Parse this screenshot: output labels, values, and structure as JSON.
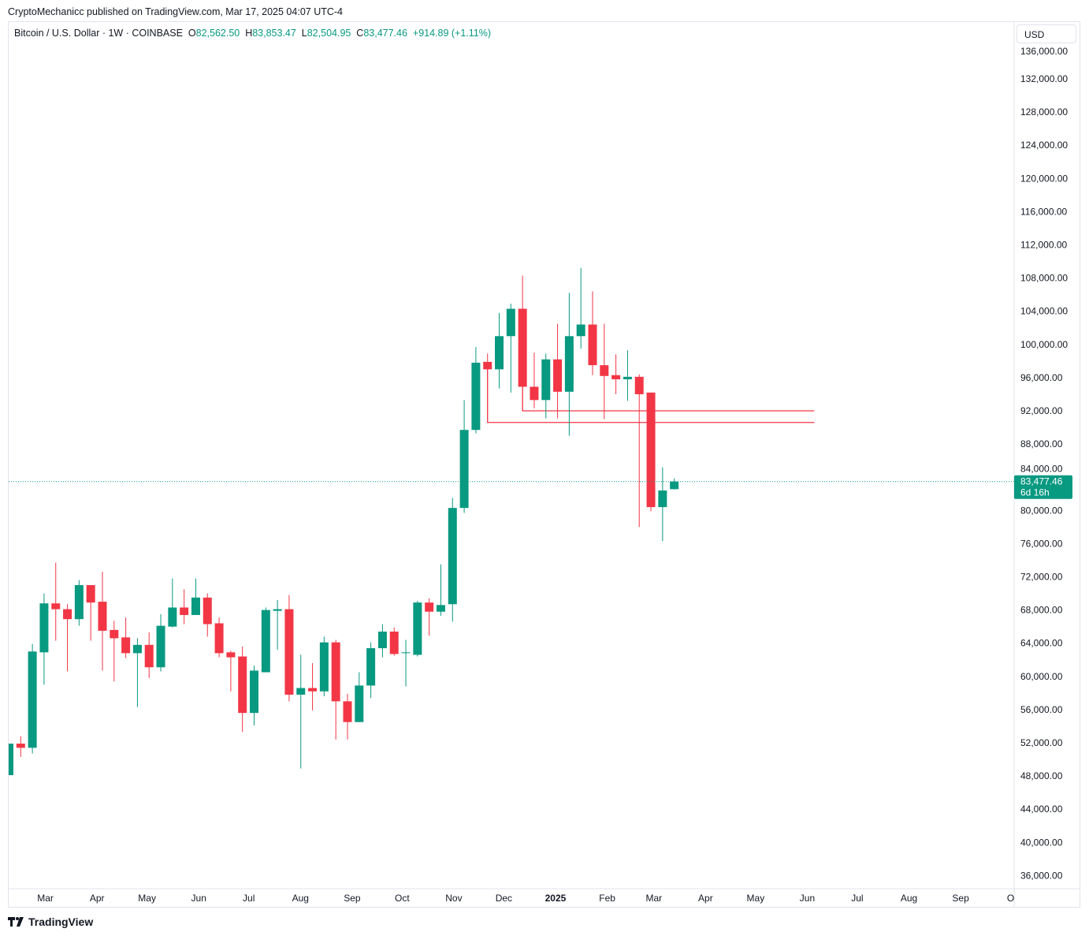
{
  "header": {
    "published": "CryptoMechanicc published on TradingView.com, Mar 17, 2025 04:07 UTC-4",
    "symbol": "Bitcoin / U.S. Dollar · 1W · COINBASE",
    "o_label": "O",
    "o_value": "82,562.50",
    "h_label": "H",
    "h_value": "83,853.47",
    "l_label": "L",
    "l_value": "82,504.95",
    "c_label": "C",
    "c_value": "83,477.46",
    "change": "+914.89 (+1.11%)",
    "currency": "USD"
  },
  "footer": {
    "brand": "TradingView",
    "logo_icon": "tradingview-logo-icon"
  },
  "colors": {
    "up": "#089981",
    "down": "#f23645",
    "level_line": "#f23645"
  },
  "chart_data": {
    "type": "candlestick",
    "interval": "1W",
    "ylim": [
      34000,
      137000
    ],
    "y_ticks": [
      136000,
      132000,
      128000,
      124000,
      120000,
      116000,
      112000,
      108000,
      104000,
      100000,
      96000,
      92000,
      88000,
      84000,
      80000,
      76000,
      72000,
      68000,
      64000,
      60000,
      56000,
      52000,
      48000,
      44000,
      40000,
      36000
    ],
    "y_tick_labels": [
      "136,000.00",
      "132,000.00",
      "128,000.00",
      "124,000.00",
      "120,000.00",
      "116,000.00",
      "112,000.00",
      "108,000.00",
      "104,000.00",
      "100,000.00",
      "96,000.00",
      "92,000.00",
      "88,000.00",
      "84,000.00",
      "80,000.00",
      "76,000.00",
      "72,000.00",
      "68,000.00",
      "64,000.00",
      "60,000.00",
      "56,000.00",
      "52,000.00",
      "48,000.00",
      "44,000.00",
      "40,000.00",
      "36,000.00"
    ],
    "x_ticks": [
      {
        "label": "Mar",
        "date": "2024-03-01"
      },
      {
        "label": "Apr",
        "date": "2024-04-01"
      },
      {
        "label": "May",
        "date": "2024-05-01"
      },
      {
        "label": "Jun",
        "date": "2024-06-01"
      },
      {
        "label": "Jul",
        "date": "2024-07-01"
      },
      {
        "label": "Aug",
        "date": "2024-08-01"
      },
      {
        "label": "Sep",
        "date": "2024-09-01"
      },
      {
        "label": "Oct",
        "date": "2024-10-01"
      },
      {
        "label": "Nov",
        "date": "2024-11-01"
      },
      {
        "label": "Dec",
        "date": "2024-12-01"
      },
      {
        "label": "2025",
        "date": "2025-01-01",
        "bold": true
      },
      {
        "label": "Feb",
        "date": "2025-02-01"
      },
      {
        "label": "Mar",
        "date": "2025-03-01"
      },
      {
        "label": "Apr",
        "date": "2025-04-01"
      },
      {
        "label": "May",
        "date": "2025-05-01"
      },
      {
        "label": "Jun",
        "date": "2025-06-01"
      },
      {
        "label": "Jul",
        "date": "2025-07-01"
      },
      {
        "label": "Aug",
        "date": "2025-08-01"
      },
      {
        "label": "Sep",
        "date": "2025-09-01"
      },
      {
        "label": "O",
        "date": "2025-10-01"
      }
    ],
    "candles_ohlc_start": "2024-02-12",
    "candles": [
      [
        48100,
        51900,
        48100,
        51900
      ],
      [
        51900,
        52800,
        50300,
        51400
      ],
      [
        51400,
        63900,
        50700,
        63000
      ],
      [
        62900,
        70000,
        59000,
        68800
      ],
      [
        68800,
        73700,
        64300,
        68100
      ],
      [
        68100,
        68700,
        60600,
        66900
      ],
      [
        66900,
        71600,
        66100,
        71000
      ],
      [
        71000,
        71000,
        64300,
        68900
      ],
      [
        69000,
        72600,
        60700,
        65500
      ],
      [
        65600,
        66700,
        59400,
        64600
      ],
      [
        64700,
        67100,
        62200,
        62800
      ],
      [
        62800,
        64600,
        56300,
        63800
      ],
      [
        63800,
        65300,
        59800,
        61100
      ],
      [
        61100,
        67500,
        60600,
        66100
      ],
      [
        66000,
        71800,
        65900,
        68300
      ],
      [
        68300,
        70500,
        66300,
        67400
      ],
      [
        67400,
        71800,
        67400,
        69500
      ],
      [
        69500,
        70000,
        64800,
        66300
      ],
      [
        66400,
        67100,
        62300,
        62800
      ],
      [
        62900,
        63100,
        58200,
        62300
      ],
      [
        62400,
        63600,
        53300,
        55600
      ],
      [
        55600,
        61300,
        54100,
        60700
      ],
      [
        60500,
        68300,
        60500,
        68000
      ],
      [
        67900,
        69200,
        63200,
        68100
      ],
      [
        68100,
        69800,
        57000,
        57800
      ],
      [
        57800,
        62600,
        48900,
        58600
      ],
      [
        58600,
        61600,
        55900,
        58200
      ],
      [
        58200,
        64800,
        57600,
        64100
      ],
      [
        64100,
        64400,
        52400,
        57000
      ],
      [
        57000,
        57900,
        52400,
        54500
      ],
      [
        54500,
        60500,
        54500,
        58900
      ],
      [
        58900,
        64100,
        57400,
        63400
      ],
      [
        63400,
        66300,
        62300,
        65400
      ],
      [
        65400,
        65900,
        62500,
        62700
      ],
      [
        62800,
        64400,
        58800,
        62900
      ],
      [
        62600,
        69100,
        62400,
        68900
      ],
      [
        68900,
        69400,
        64900,
        67800
      ],
      [
        67800,
        73500,
        67300,
        68600
      ],
      [
        68700,
        81500,
        66600,
        80300
      ],
      [
        80300,
        93300,
        79700,
        89700
      ],
      [
        89700,
        99700,
        89300,
        97800
      ],
      [
        97900,
        98900,
        90600,
        97000
      ],
      [
        97000,
        103800,
        94700,
        101000
      ],
      [
        101000,
        104900,
        94200,
        104300
      ],
      [
        104300,
        108300,
        92000,
        94900
      ],
      [
        94900,
        99000,
        92300,
        93300
      ],
      [
        93300,
        98900,
        91100,
        98200
      ],
      [
        98200,
        102500,
        91100,
        94300
      ],
      [
        94300,
        106200,
        89000,
        101000
      ],
      [
        101000,
        109200,
        99500,
        102400
      ],
      [
        102400,
        106400,
        96300,
        97500
      ],
      [
        97500,
        102500,
        91000,
        96200
      ],
      [
        96300,
        98800,
        94000,
        95800
      ],
      [
        95800,
        99300,
        93200,
        96100
      ],
      [
        96100,
        96400,
        78000,
        94000
      ],
      [
        94200,
        94200,
        79900,
        80400
      ],
      [
        80400,
        85200,
        76300,
        82400
      ],
      [
        82562.5,
        83853.47,
        82504.95,
        83477.46
      ]
    ],
    "levels": [
      {
        "price": 92000,
        "from_date": "2024-12-16",
        "to_date": "2025-06-09"
      },
      {
        "price": 90600,
        "from_date": "2024-11-25",
        "to_date": "2025-06-09"
      }
    ],
    "last_price": {
      "value": "83,477.46",
      "countdown": "6d 16h"
    },
    "grid": false
  }
}
